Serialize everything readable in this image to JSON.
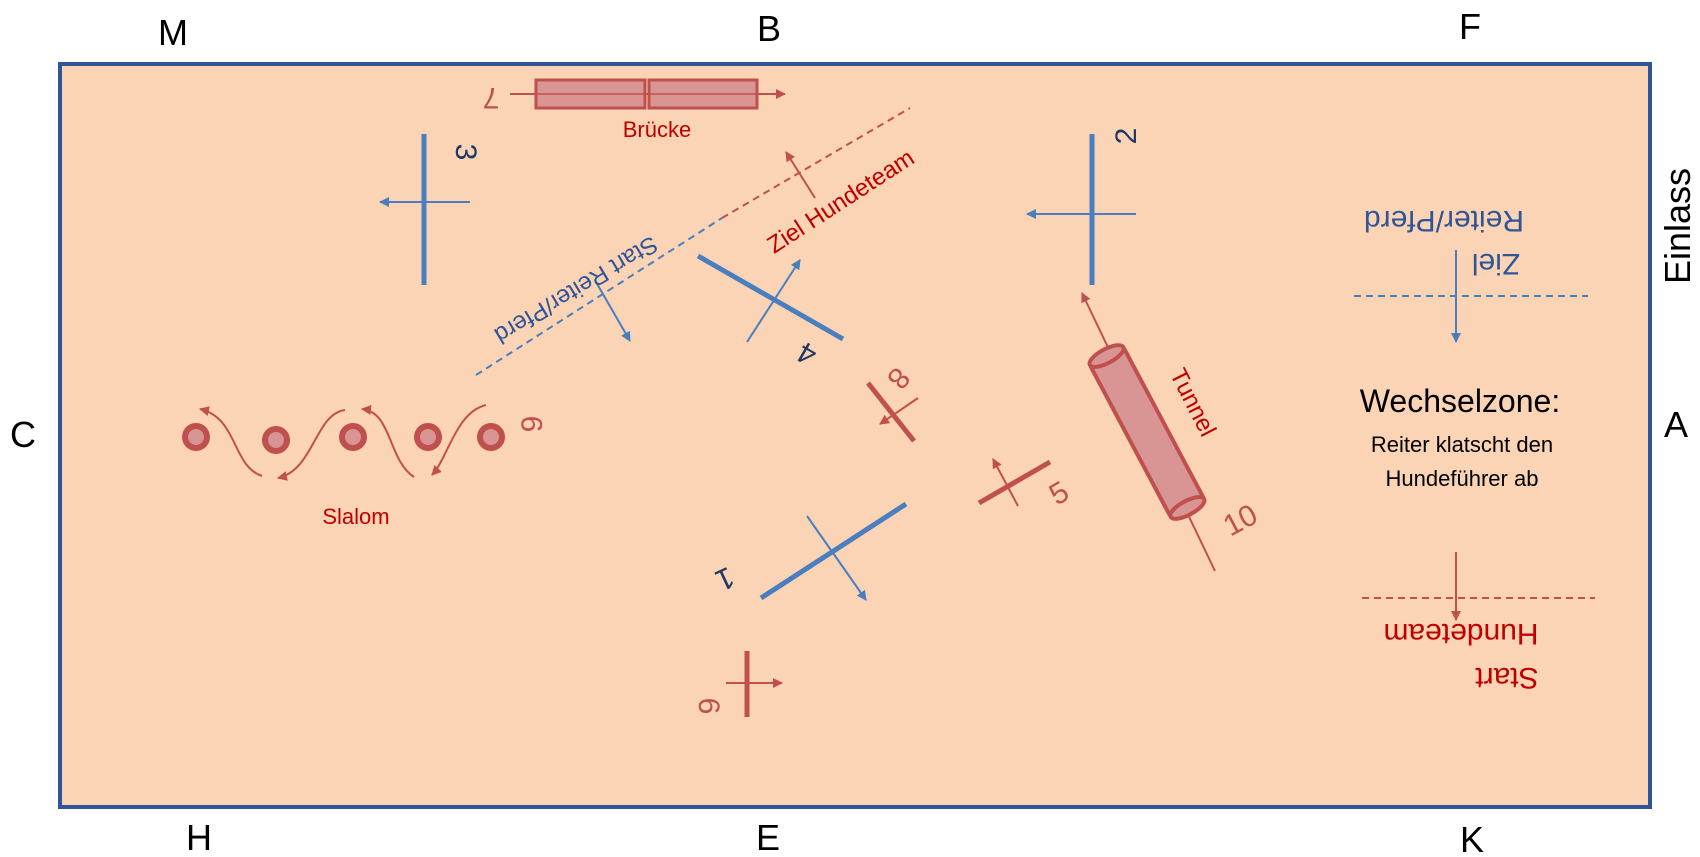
{
  "arena_letters": {
    "top_left": "M",
    "top_mid": "B",
    "top_right": "F",
    "left": "C",
    "right": "A",
    "bottom_left": "H",
    "bottom_mid": "E",
    "bottom_right": "K",
    "entrance": "Einlass"
  },
  "obstacles": {
    "bridge_label": "Brücke",
    "bridge_number": "7",
    "tunnel_label": "Tunnel",
    "tunnel_number": "10",
    "slalom_label": "Slalom",
    "slalom_number": "9",
    "jump_1": "1",
    "jump_2": "2",
    "jump_3": "3",
    "jump_4": "4",
    "jump_5": "5",
    "jump_6": "6",
    "jump_8": "8"
  },
  "lines": {
    "start_rider": "Start Reiter/Pferd",
    "finish_dogteam": "Ziel Hundeteam",
    "finish_rider_line1": "Ziel",
    "finish_rider_line2": "Reiter/Pferd",
    "start_dogteam_line1": "Start",
    "start_dogteam_line2": "Hundeteam"
  },
  "exchange_zone": {
    "title": "Wechselzone:",
    "line1": "Reiter klatscht den",
    "line2": "Hundeführer ab"
  },
  "colors": {
    "arena_fill": "#fad4b4",
    "arena_border": "#2f5597",
    "red_obstacle": "#c0504d",
    "blue_obstacle": "#4a7ebf",
    "red_text": "#c00000",
    "blue_text": "#2f5597"
  }
}
